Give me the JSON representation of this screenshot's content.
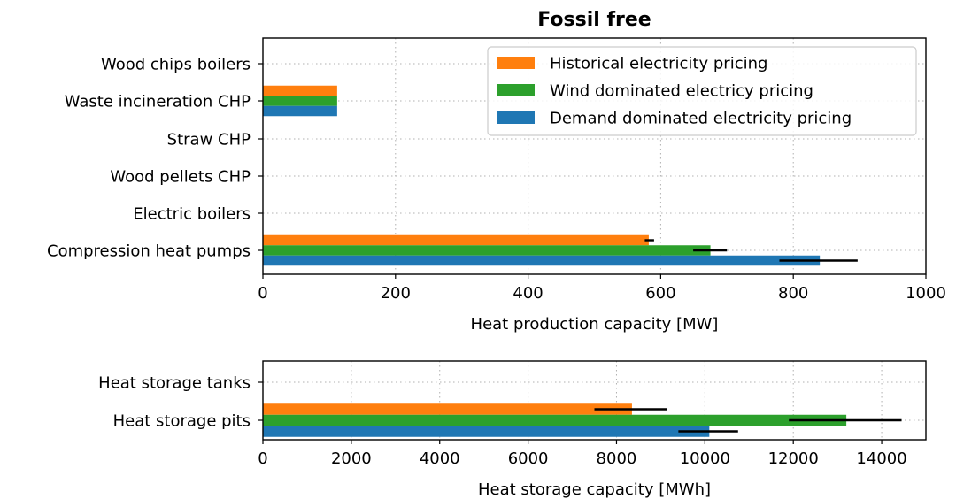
{
  "chart_data": [
    {
      "type": "bar",
      "orientation": "horizontal",
      "title": "Fossil free",
      "xlabel": "Heat production capacity [MW]",
      "ylabel": "",
      "xlim": [
        0,
        1000
      ],
      "xticks": [
        0,
        200,
        400,
        600,
        800,
        1000
      ],
      "grid": true,
      "legend_position": "top-right",
      "categories": [
        "Wood chips boilers",
        "Waste incineration CHP",
        "Straw CHP",
        "Wood pellets CHP",
        "Electric boilers",
        "Compression heat pumps"
      ],
      "series": [
        {
          "name": "Historical electricity pricing",
          "color": "#ff7f0e",
          "values": [
            0,
            112,
            0,
            0,
            0,
            582
          ],
          "err_low": [
            0,
            0,
            0,
            0,
            0,
            576
          ],
          "err_high": [
            0,
            0,
            0,
            0,
            0,
            590
          ]
        },
        {
          "name": "Wind dominated electricy pricing",
          "color": "#2ca02c",
          "values": [
            0,
            112,
            0,
            0,
            0,
            675
          ],
          "err_low": [
            0,
            0,
            0,
            0,
            0,
            649
          ],
          "err_high": [
            0,
            0,
            0,
            0,
            0,
            700
          ]
        },
        {
          "name": "Demand dominated electricity pricing",
          "color": "#1f77b4",
          "values": [
            0,
            112,
            0,
            0,
            0,
            840
          ],
          "err_low": [
            0,
            0,
            0,
            0,
            0,
            779
          ],
          "err_high": [
            0,
            0,
            0,
            0,
            0,
            897
          ]
        }
      ]
    },
    {
      "type": "bar",
      "orientation": "horizontal",
      "title": "",
      "xlabel": "Heat storage capacity [MWh]",
      "ylabel": "",
      "xlim": [
        0,
        15000
      ],
      "xticks": [
        0,
        2000,
        4000,
        6000,
        8000,
        10000,
        12000,
        14000
      ],
      "grid": true,
      "categories": [
        "Heat storage tanks",
        "Heat storage pits"
      ],
      "series": [
        {
          "name": "Historical electricity pricing",
          "color": "#ff7f0e",
          "values": [
            0,
            8350
          ],
          "err_low": [
            0,
            7500
          ],
          "err_high": [
            0,
            9150
          ]
        },
        {
          "name": "Wind dominated electricy pricing",
          "color": "#2ca02c",
          "values": [
            0,
            13200
          ],
          "err_low": [
            0,
            11900
          ],
          "err_high": [
            0,
            14450
          ]
        },
        {
          "name": "Demand dominated electricity pricing",
          "color": "#1f77b4",
          "values": [
            0,
            10100
          ],
          "err_low": [
            0,
            9400
          ],
          "err_high": [
            0,
            10750
          ]
        }
      ]
    }
  ]
}
